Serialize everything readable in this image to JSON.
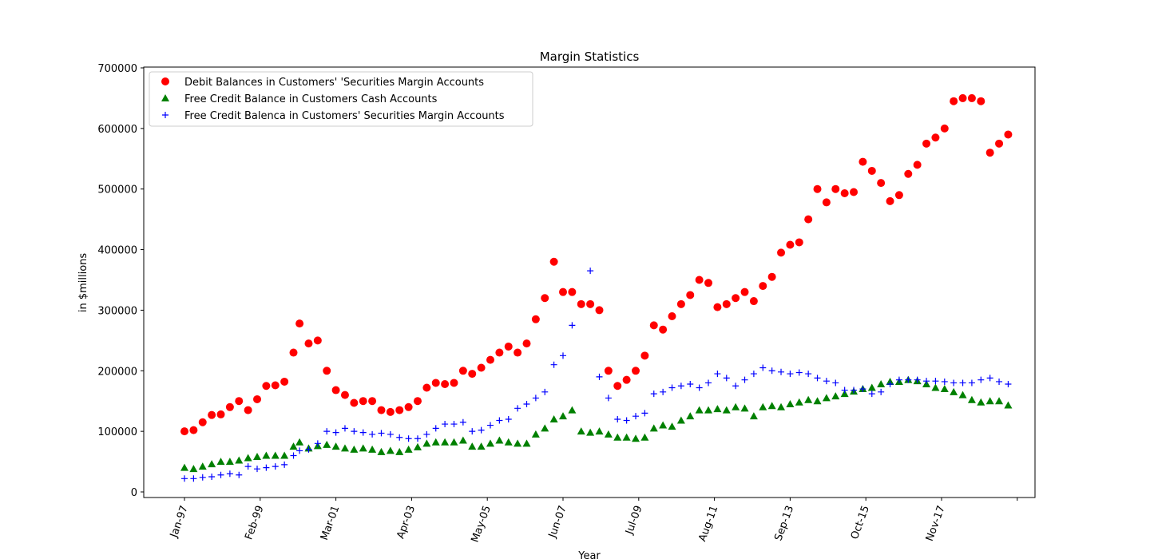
{
  "chart_data": {
    "type": "scatter",
    "title": "Margin Statistics",
    "xlabel": "Year",
    "ylabel": "in $millions",
    "ylim": [
      0,
      700000
    ],
    "xlim": [
      "Jan-97",
      "Jan-20"
    ],
    "y_ticks": [
      0,
      100000,
      200000,
      300000,
      400000,
      500000,
      600000,
      700000
    ],
    "x_tick_labels": [
      "Jan-97",
      "Feb-99",
      "Mar-01",
      "Apr-03",
      "May-05",
      "Jun-07",
      "Jul-09",
      "Aug-11",
      "Sep-13",
      "Oct-15",
      "Nov-17",
      ""
    ],
    "grid": false,
    "legend_position": "upper-left",
    "x_dates": [
      "1997-01",
      "1997-04",
      "1997-07",
      "1997-10",
      "1998-01",
      "1998-04",
      "1998-07",
      "1998-10",
      "1999-01",
      "1999-04",
      "1999-07",
      "1999-10",
      "2000-01",
      "2000-03",
      "2000-06",
      "2000-09",
      "2000-12",
      "2001-03",
      "2001-06",
      "2001-09",
      "2001-12",
      "2002-03",
      "2002-06",
      "2002-09",
      "2002-12",
      "2003-03",
      "2003-06",
      "2003-09",
      "2003-12",
      "2004-03",
      "2004-06",
      "2004-09",
      "2004-12",
      "2005-03",
      "2005-06",
      "2005-09",
      "2005-12",
      "2006-03",
      "2006-06",
      "2006-09",
      "2006-12",
      "2007-03",
      "2007-06",
      "2007-09",
      "2007-12",
      "2008-03",
      "2008-06",
      "2008-09",
      "2008-12",
      "2009-03",
      "2009-06",
      "2009-09",
      "2009-12",
      "2010-03",
      "2010-06",
      "2010-09",
      "2010-12",
      "2011-03",
      "2011-06",
      "2011-09",
      "2011-12",
      "2012-03",
      "2012-06",
      "2012-09",
      "2012-12",
      "2013-03",
      "2013-06",
      "2013-09",
      "2013-12",
      "2014-03",
      "2014-06",
      "2014-09",
      "2014-12",
      "2015-03",
      "2015-06",
      "2015-09",
      "2015-12",
      "2016-03",
      "2016-06",
      "2016-09",
      "2016-12",
      "2017-03",
      "2017-06",
      "2017-09",
      "2017-12",
      "2018-03",
      "2018-06",
      "2018-09",
      "2018-12",
      "2019-03",
      "2019-06",
      "2019-09"
    ],
    "series": [
      {
        "name": "Debit Balances in Customers' 'Securities Margin Accounts",
        "color": "#ff0000",
        "marker": "circle",
        "values": [
          100000,
          102000,
          115000,
          127000,
          128000,
          140000,
          150000,
          135000,
          153000,
          175000,
          176000,
          182000,
          230000,
          278000,
          245000,
          250000,
          200000,
          168000,
          160000,
          147000,
          150000,
          150000,
          135000,
          132000,
          135000,
          140000,
          150000,
          172000,
          180000,
          178000,
          180000,
          200000,
          195000,
          205000,
          218000,
          230000,
          240000,
          230000,
          245000,
          285000,
          320000,
          380000,
          330000,
          330000,
          310000,
          310000,
          300000,
          200000,
          175000,
          185000,
          200000,
          225000,
          275000,
          268000,
          290000,
          310000,
          325000,
          350000,
          345000,
          305000,
          310000,
          320000,
          330000,
          315000,
          340000,
          355000,
          395000,
          408000,
          412000,
          450000,
          500000,
          478000,
          500000,
          493000,
          495000,
          545000,
          530000,
          510000,
          480000,
          490000,
          525000,
          540000,
          575000,
          585000,
          600000,
          645000,
          650000,
          650000,
          645000,
          560000,
          575000,
          590000
        ]
      },
      {
        "name": "Free Credit Balance in Customers Cash Accounts",
        "color": "#008000",
        "marker": "triangle",
        "values": [
          40000,
          38000,
          42000,
          46000,
          50000,
          50000,
          52000,
          56000,
          58000,
          60000,
          60000,
          60000,
          75000,
          82000,
          72000,
          76000,
          78000,
          75000,
          72000,
          70000,
          72000,
          70000,
          66000,
          68000,
          66000,
          70000,
          74000,
          80000,
          82000,
          82000,
          82000,
          85000,
          75000,
          75000,
          80000,
          85000,
          82000,
          80000,
          80000,
          95000,
          105000,
          120000,
          125000,
          135000,
          100000,
          98000,
          100000,
          95000,
          90000,
          90000,
          88000,
          90000,
          105000,
          110000,
          108000,
          118000,
          125000,
          135000,
          135000,
          137000,
          135000,
          140000,
          138000,
          125000,
          140000,
          142000,
          140000,
          145000,
          148000,
          152000,
          150000,
          155000,
          158000,
          162000,
          166000,
          170000,
          172000,
          178000,
          182000,
          182000,
          185000,
          183000,
          178000,
          172000,
          170000,
          165000,
          160000,
          152000,
          148000,
          150000,
          150000,
          143000
        ]
      },
      {
        "name": "Free Credit Balenca in Customers' Securities Margin Accounts",
        "color": "#0000ff",
        "marker": "plus",
        "values": [
          22000,
          22000,
          24000,
          25000,
          28000,
          30000,
          28000,
          42000,
          38000,
          40000,
          42000,
          45000,
          60000,
          68000,
          70000,
          80000,
          100000,
          98000,
          105000,
          100000,
          98000,
          95000,
          97000,
          95000,
          90000,
          88000,
          88000,
          95000,
          105000,
          112000,
          112000,
          115000,
          100000,
          102000,
          110000,
          118000,
          120000,
          138000,
          145000,
          155000,
          165000,
          210000,
          225000,
          275000,
          310000,
          365000,
          190000,
          155000,
          120000,
          118000,
          125000,
          130000,
          162000,
          165000,
          172000,
          175000,
          178000,
          172000,
          180000,
          195000,
          188000,
          175000,
          185000,
          195000,
          205000,
          200000,
          198000,
          195000,
          197000,
          195000,
          188000,
          183000,
          180000,
          168000,
          168000,
          170000,
          162000,
          165000,
          178000,
          185000,
          185000,
          185000,
          183000,
          183000,
          182000,
          180000,
          180000,
          180000,
          185000,
          188000,
          182000,
          178000
        ]
      }
    ]
  }
}
